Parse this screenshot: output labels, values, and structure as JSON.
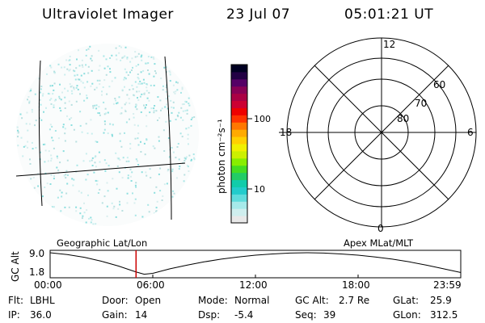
{
  "header": {
    "instrument": "Ultraviolet Imager",
    "date": "23 Jul 07",
    "time": "05:01:21 UT"
  },
  "colorbar": {
    "label": "photon cm⁻²s⁻¹",
    "ticks": [
      "100",
      "10"
    ],
    "colors": [
      "#e8e8e8",
      "#cfeeee",
      "#a6eaea",
      "#5fdcdc",
      "#22cccc",
      "#11ccaa",
      "#22cc66",
      "#44dd22",
      "#88ee00",
      "#ccf000",
      "#f0f000",
      "#ffd000",
      "#ffaa00",
      "#ff7700",
      "#ff3300",
      "#ee0000",
      "#cc0033",
      "#aa0044",
      "#880055",
      "#550066",
      "#220044",
      "#000022"
    ]
  },
  "polar": {
    "clock_labels": [
      "12",
      "18",
      "6",
      "0"
    ],
    "lat_labels": [
      "60",
      "70",
      "80"
    ]
  },
  "geo_label": "Geographic Lat/Lon",
  "apex_label": "Apex MLat/MLT",
  "chart_data": {
    "type": "line",
    "title": "",
    "ylabel": "GC Alt",
    "yticks": [
      "9.0",
      "1.8"
    ],
    "ylim": [
      1.8,
      9.0
    ],
    "xticks": [
      "00:00",
      "06:00",
      "12:00",
      "18:00",
      "23:59"
    ],
    "xlim_hours": [
      0,
      24
    ],
    "series": [
      {
        "x": [
          0,
          1,
          2,
          3,
          4,
          5,
          5.5,
          6,
          7,
          8,
          9,
          10,
          11,
          12,
          13,
          14,
          15,
          16,
          17,
          18,
          19,
          20,
          21,
          22,
          23,
          23.98
        ],
        "y": [
          9.0,
          8.4,
          7.5,
          6.2,
          4.6,
          2.7,
          1.9,
          2.2,
          3.7,
          4.9,
          6.0,
          6.9,
          7.6,
          8.2,
          8.6,
          8.9,
          9.0,
          8.9,
          8.6,
          8.2,
          7.6,
          6.9,
          6.0,
          4.9,
          3.7,
          2.5
        ]
      }
    ],
    "marker_hour": 5.02,
    "marker_color": "#cc0000"
  },
  "status": {
    "flt_label": "Flt:",
    "flt_value": "LBHL",
    "ip_label": "IP:",
    "ip_value": "36.0",
    "door_label": "Door:",
    "door_value": "Open",
    "gain_label": "Gain:",
    "gain_value": "14",
    "mode_label": "Mode:",
    "mode_value": "Normal",
    "dsp_label": "Dsp:",
    "dsp_value": "-5.4",
    "gcalt_label": "GC Alt:",
    "gcalt_value": "2.7 Re",
    "seq_label": "Seq:",
    "seq_value": "39",
    "glat_label": "GLat:",
    "glat_value": "25.9",
    "glon_label": "GLon:",
    "glon_value": "312.5"
  }
}
